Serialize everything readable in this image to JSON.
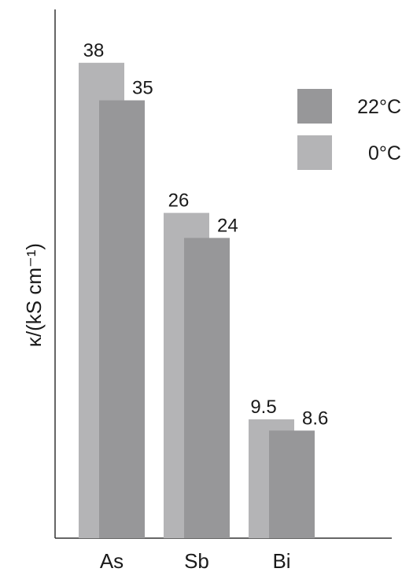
{
  "chart_data": {
    "type": "bar",
    "categories": [
      "As",
      "Sb",
      "Bi"
    ],
    "series": [
      {
        "name": "0°C",
        "values": [
          38,
          26,
          9.5
        ],
        "labels": [
          "38",
          "26",
          "9.5"
        ],
        "color": "#b4b4b6"
      },
      {
        "name": "22°C",
        "values": [
          35,
          24,
          8.6
        ],
        "labels": [
          "35",
          "24",
          "8.6"
        ],
        "color": "#979799"
      }
    ],
    "ylabel": "κ/(kS cm⁻¹)",
    "xlabel": "",
    "ylim": [
      0,
      40
    ],
    "grid": false,
    "legend": {
      "placement": "top-right",
      "order": [
        "22°C",
        "0°C"
      ]
    },
    "axis_color": "#333333"
  }
}
